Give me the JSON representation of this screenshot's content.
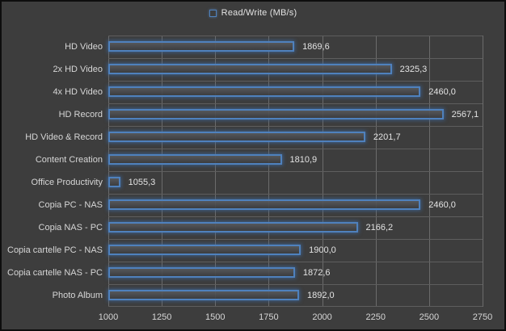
{
  "legend": {
    "label": "Read/Write (MB/s)"
  },
  "chart_data": {
    "type": "bar",
    "orientation": "horizontal",
    "title": "",
    "legend": [
      "Read/Write (MB/s)"
    ],
    "legend_position": "top-center",
    "grid": true,
    "xlim": [
      1000,
      2750
    ],
    "x_tick_step": 250,
    "x_ticks": [
      "1000",
      "1250",
      "1500",
      "1750",
      "2000",
      "2250",
      "2500",
      "2750"
    ],
    "categories": [
      "HD Video",
      "2x HD Video",
      "4x HD Video",
      "HD Record",
      "HD Video & Record",
      "Content Creation",
      "Office Productivity",
      "Copia PC - NAS",
      "Copia NAS - PC",
      "Copia cartelle PC - NAS",
      "Copia cartelle NAS - PC",
      "Photo Album"
    ],
    "values": [
      1869.6,
      2325.3,
      2460.0,
      2567.1,
      2201.7,
      1810.9,
      1055.3,
      2460.0,
      2166.2,
      1900.0,
      1872.6,
      1892.0
    ],
    "value_labels": [
      "1869,6",
      "2325,3",
      "2460,0",
      "2567,1",
      "2201,7",
      "1810,9",
      "1055,3",
      "2460,0",
      "2166,2",
      "1900,0",
      "1872,6",
      "1892,0"
    ]
  },
  "colors": {
    "background": "#3d3d3d",
    "frame_border": "#0d0d0d",
    "gridline": "#6b6b6b",
    "gridline_h": "#5e5e5e",
    "text": "#e3e3e3",
    "text_dim": "#d6d6d6",
    "bar_border": "#4f81bd"
  }
}
